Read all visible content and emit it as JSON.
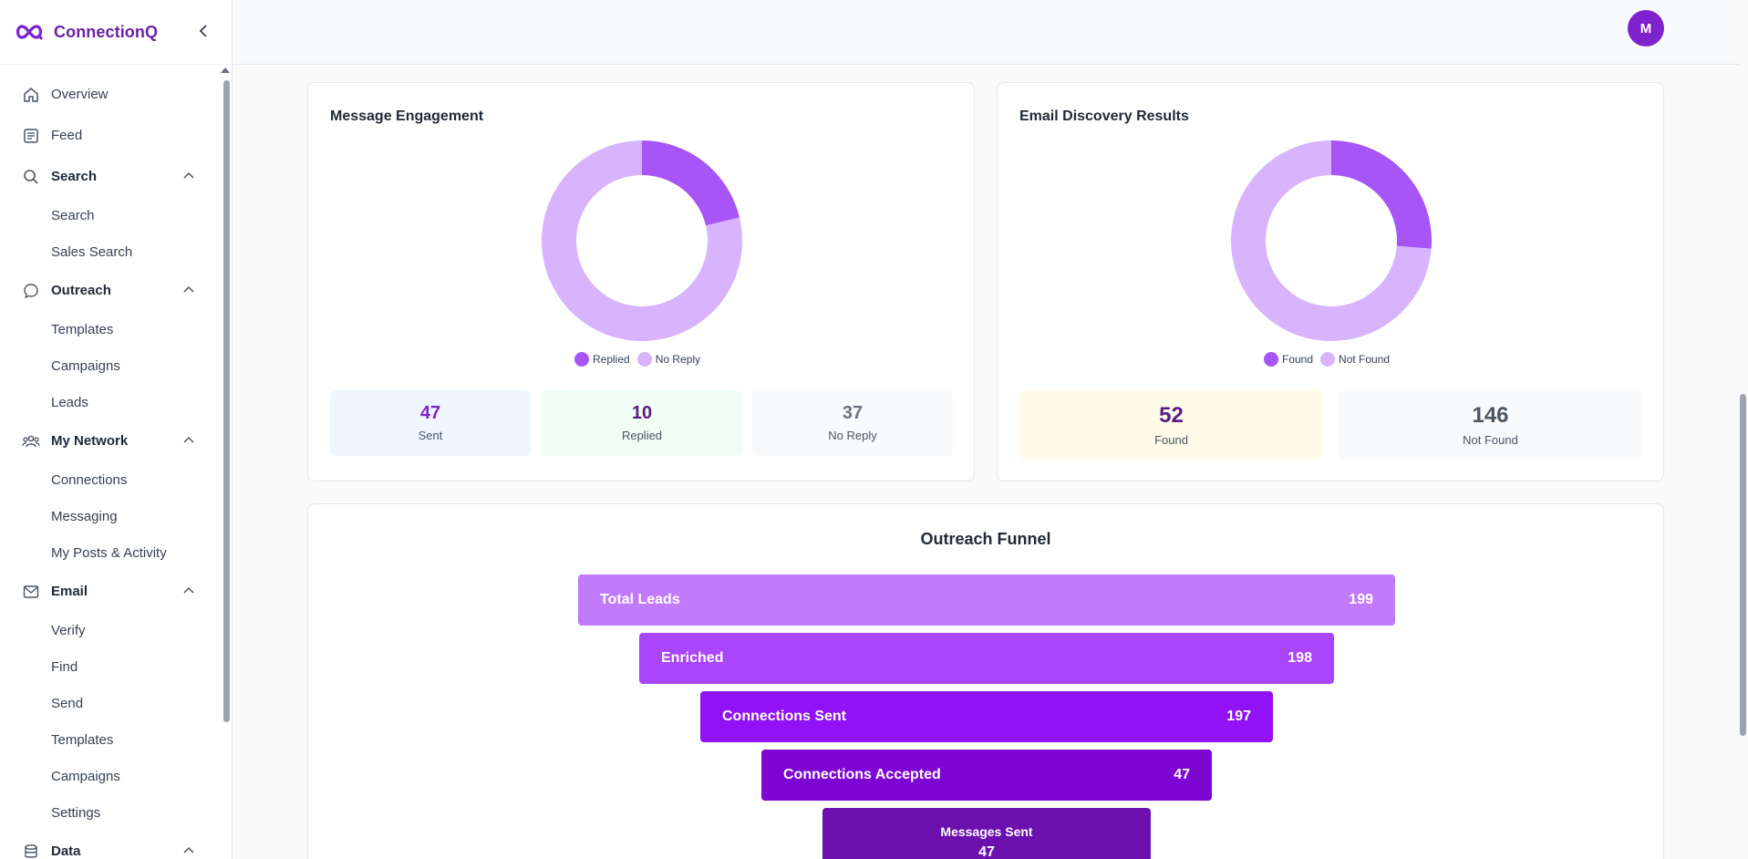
{
  "app": {
    "name": "ConnectionQ",
    "user_initial": "M"
  },
  "sidebar": {
    "items": [
      {
        "label": "Overview"
      },
      {
        "label": "Feed"
      },
      {
        "label": "Search",
        "children": [
          "Search",
          "Sales Search"
        ]
      },
      {
        "label": "Outreach",
        "children": [
          "Templates",
          "Campaigns",
          "Leads"
        ]
      },
      {
        "label": "My Network",
        "children": [
          "Connections",
          "Messaging",
          "My Posts & Activity"
        ]
      },
      {
        "label": "Email",
        "children": [
          "Verify",
          "Find",
          "Send",
          "Templates",
          "Campaigns",
          "Settings"
        ]
      },
      {
        "label": "Data"
      }
    ]
  },
  "engagement": {
    "title": "Message Engagement",
    "legend": [
      "Replied",
      "No Reply"
    ],
    "stats": [
      {
        "value": "47",
        "label": "Sent"
      },
      {
        "value": "10",
        "label": "Replied"
      },
      {
        "value": "37",
        "label": "No Reply"
      }
    ]
  },
  "discovery": {
    "title": "Email Discovery Results",
    "legend": [
      "Found",
      "Not Found"
    ],
    "stats": [
      {
        "value": "52",
        "label": "Found"
      },
      {
        "value": "146",
        "label": "Not Found"
      }
    ]
  },
  "funnel": {
    "title": "Outreach Funnel",
    "stages": [
      {
        "label": "Total Leads",
        "value": "199"
      },
      {
        "label": "Enriched",
        "value": "198"
      },
      {
        "label": "Connections Sent",
        "value": "197"
      },
      {
        "label": "Connections Accepted",
        "value": "47"
      },
      {
        "label": "Messages Sent",
        "value": "47"
      }
    ]
  },
  "colors": {
    "brand": "#6b21a8",
    "donut_primary": "#a855f7",
    "donut_secondary": "#d8b4fe",
    "funnel": [
      "#c27afc",
      "#a945fb",
      "#9112f5",
      "#7d06d2",
      "#6b0fad"
    ]
  },
  "chart_data": [
    {
      "type": "pie",
      "title": "Message Engagement",
      "categories": [
        "Replied",
        "No Reply"
      ],
      "values": [
        10,
        37
      ]
    },
    {
      "type": "pie",
      "title": "Email Discovery Results",
      "categories": [
        "Found",
        "Not Found"
      ],
      "values": [
        52,
        146
      ]
    },
    {
      "type": "bar",
      "title": "Outreach Funnel",
      "categories": [
        "Total Leads",
        "Enriched",
        "Connections Sent",
        "Connections Accepted",
        "Messages Sent"
      ],
      "values": [
        199,
        198,
        197,
        47,
        47
      ]
    }
  ]
}
